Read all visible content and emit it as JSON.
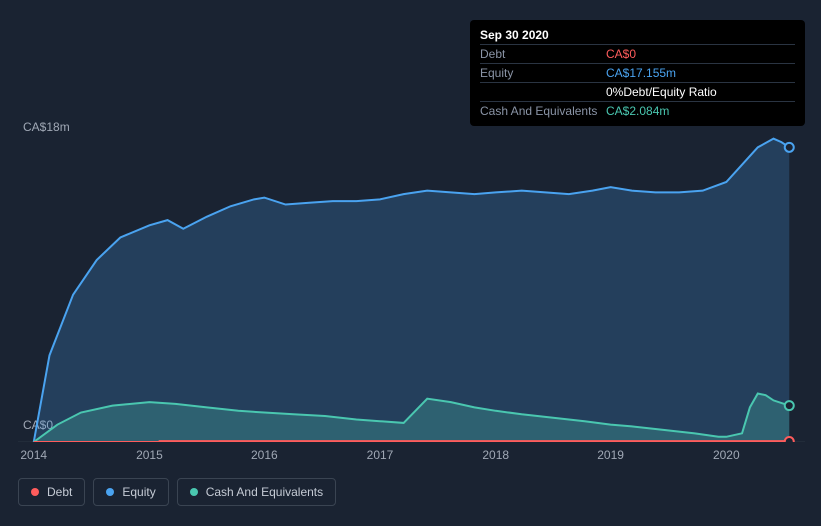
{
  "tooltip": {
    "date": "Sep 30 2020",
    "debt_label": "Debt",
    "debt_value": "CA$0",
    "equity_label": "Equity",
    "equity_value": "CA$17.155m",
    "ratio_pct": "0%",
    "ratio_label": "Debt/Equity Ratio",
    "cash_label": "Cash And Equivalents",
    "cash_value": "CA$2.084m"
  },
  "chart": {
    "type": "area",
    "background_color": "#1a2332",
    "grid_color": "#2a3442",
    "x_labels": [
      "2014",
      "2015",
      "2016",
      "2017",
      "2018",
      "2019",
      "2020"
    ],
    "x_positions": [
      0.02,
      0.167,
      0.313,
      0.46,
      0.607,
      0.753,
      0.9
    ],
    "y_top_label": "CA$18m",
    "y_bottom_label": "CA$0",
    "ylim": [
      0,
      18
    ],
    "marker_x": 0.98,
    "series": {
      "debt": {
        "label": "Debt",
        "color": "#ff5c5c",
        "fill_opacity": 0.15,
        "points": [
          [
            0.02,
            0
          ],
          [
            0.18,
            0
          ],
          [
            0.18,
            0.05
          ],
          [
            0.98,
            0.05
          ]
        ],
        "marker_y": 0.03
      },
      "equity": {
        "label": "Equity",
        "color": "#4aa3f0",
        "fill_opacity": 0.22,
        "points": [
          [
            0.02,
            0
          ],
          [
            0.04,
            5
          ],
          [
            0.07,
            8.5
          ],
          [
            0.1,
            10.5
          ],
          [
            0.13,
            11.8
          ],
          [
            0.167,
            12.5
          ],
          [
            0.19,
            12.8
          ],
          [
            0.21,
            12.3
          ],
          [
            0.24,
            13.0
          ],
          [
            0.27,
            13.6
          ],
          [
            0.3,
            14.0
          ],
          [
            0.313,
            14.1
          ],
          [
            0.34,
            13.7
          ],
          [
            0.37,
            13.8
          ],
          [
            0.4,
            13.9
          ],
          [
            0.43,
            13.9
          ],
          [
            0.46,
            14.0
          ],
          [
            0.49,
            14.3
          ],
          [
            0.52,
            14.5
          ],
          [
            0.55,
            14.4
          ],
          [
            0.58,
            14.3
          ],
          [
            0.607,
            14.4
          ],
          [
            0.64,
            14.5
          ],
          [
            0.67,
            14.4
          ],
          [
            0.7,
            14.3
          ],
          [
            0.73,
            14.5
          ],
          [
            0.753,
            14.7
          ],
          [
            0.78,
            14.5
          ],
          [
            0.81,
            14.4
          ],
          [
            0.84,
            14.4
          ],
          [
            0.87,
            14.5
          ],
          [
            0.9,
            15.0
          ],
          [
            0.92,
            16.0
          ],
          [
            0.94,
            17.0
          ],
          [
            0.96,
            17.5
          ],
          [
            0.97,
            17.3
          ],
          [
            0.98,
            17.0
          ]
        ],
        "marker_y": 17.0
      },
      "cash": {
        "label": "Cash And Equivalents",
        "color": "#4ac7b0",
        "fill_opacity": 0.25,
        "points": [
          [
            0.02,
            0
          ],
          [
            0.05,
            1.0
          ],
          [
            0.08,
            1.7
          ],
          [
            0.12,
            2.1
          ],
          [
            0.167,
            2.3
          ],
          [
            0.2,
            2.2
          ],
          [
            0.24,
            2.0
          ],
          [
            0.28,
            1.8
          ],
          [
            0.313,
            1.7
          ],
          [
            0.35,
            1.6
          ],
          [
            0.39,
            1.5
          ],
          [
            0.43,
            1.3
          ],
          [
            0.46,
            1.2
          ],
          [
            0.49,
            1.1
          ],
          [
            0.52,
            2.5
          ],
          [
            0.55,
            2.3
          ],
          [
            0.58,
            2.0
          ],
          [
            0.607,
            1.8
          ],
          [
            0.64,
            1.6
          ],
          [
            0.68,
            1.4
          ],
          [
            0.72,
            1.2
          ],
          [
            0.753,
            1.0
          ],
          [
            0.78,
            0.9
          ],
          [
            0.82,
            0.7
          ],
          [
            0.86,
            0.5
          ],
          [
            0.89,
            0.3
          ],
          [
            0.9,
            0.3
          ],
          [
            0.92,
            0.5
          ],
          [
            0.93,
            2.0
          ],
          [
            0.94,
            2.8
          ],
          [
            0.95,
            2.7
          ],
          [
            0.96,
            2.4
          ],
          [
            0.98,
            2.1
          ]
        ],
        "marker_y": 2.1
      }
    }
  },
  "legend": {
    "items": [
      {
        "label": "Debt",
        "color": "#ff5c5c"
      },
      {
        "label": "Equity",
        "color": "#4aa3f0"
      },
      {
        "label": "Cash And Equivalents",
        "color": "#4ac7b0"
      }
    ]
  }
}
